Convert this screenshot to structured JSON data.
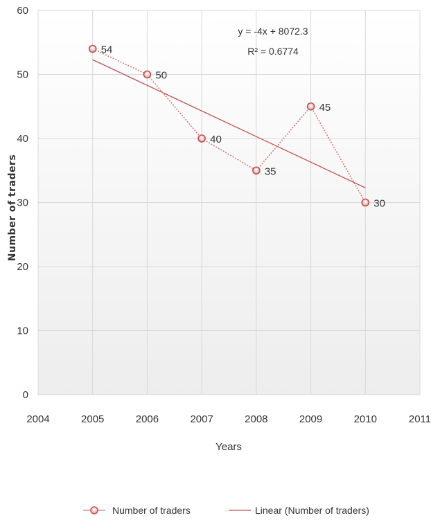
{
  "chart_data": {
    "type": "scatter",
    "title": "",
    "xlabel": "Years",
    "ylabel": "Number of traders",
    "xlim": [
      2004,
      2011
    ],
    "ylim": [
      0,
      60
    ],
    "xticks": [
      2004,
      2005,
      2006,
      2007,
      2008,
      2009,
      2010,
      2011
    ],
    "yticks": [
      0,
      10,
      20,
      30,
      40,
      50,
      60
    ],
    "grid": true,
    "legend_position": "bottom",
    "series": [
      {
        "name": "Number of traders",
        "style": "dotted-line-with-markers",
        "color": "#d9797a",
        "x": [
          2005,
          2006,
          2007,
          2008,
          2009,
          2010
        ],
        "y": [
          54,
          50,
          40,
          35,
          45,
          30
        ],
        "data_labels": [
          "54",
          "50",
          "40",
          "35",
          "45",
          "30"
        ]
      },
      {
        "name": "Linear (Number of traders)",
        "style": "trendline",
        "color": "#c0504d",
        "x": [
          2005,
          2010
        ],
        "y": [
          52.3,
          32.3
        ]
      }
    ],
    "annotations": {
      "equation": "y = -4x + 8072.3",
      "r_squared": "R² = 0.6774"
    }
  }
}
